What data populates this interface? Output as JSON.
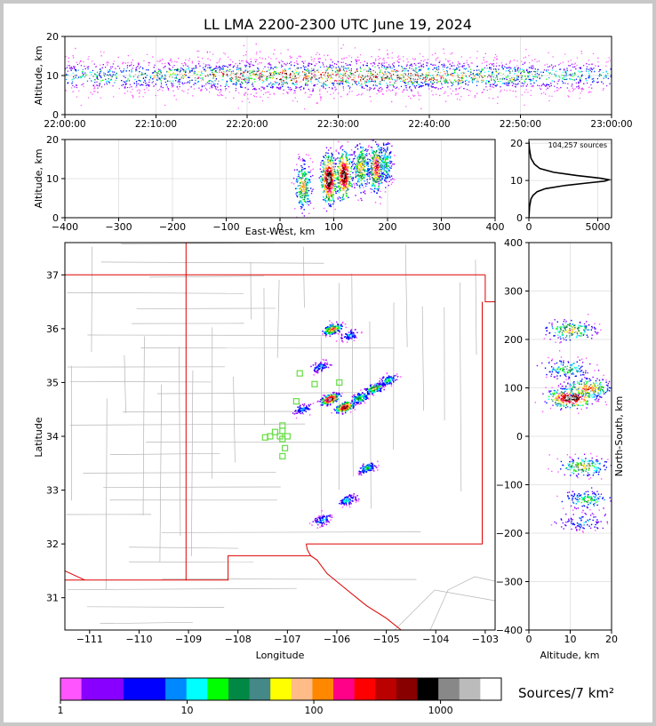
{
  "chart_data": [
    {
      "type": "scatter",
      "panel": "time-altitude",
      "title": "LL LMA 2200-2300 UTC June 19, 2024",
      "xlabel": "",
      "ylabel": "Altitude, km",
      "x_ticks": [
        "22:00:00",
        "22:10:00",
        "22:20:00",
        "22:30:00",
        "22:40:00",
        "22:50:00",
        "23:00:00"
      ],
      "x_range_minutes": [
        0,
        60
      ],
      "ylim": [
        0,
        20
      ],
      "y_ticks": [
        0,
        10,
        20
      ],
      "grid": true,
      "band_center_km": 10,
      "band_halfwidth_km": 4.5
    },
    {
      "type": "scatter",
      "panel": "east-west-altitude",
      "xlabel": "East-West, km",
      "ylabel": "Altitude, km",
      "xlim": [
        -400,
        400
      ],
      "x_ticks": [
        -400,
        -300,
        -200,
        -100,
        0,
        100,
        200,
        300,
        400
      ],
      "ylim": [
        0,
        20
      ],
      "y_ticks": [
        0,
        10,
        20
      ],
      "grid": true,
      "clusters": [
        {
          "x": 42,
          "y": 8,
          "density": 0.6
        },
        {
          "x": 90,
          "y": 10,
          "density": 1.0
        },
        {
          "x": 118,
          "y": 11,
          "density": 0.95
        },
        {
          "x": 150,
          "y": 13,
          "density": 0.6
        },
        {
          "x": 178,
          "y": 13,
          "density": 0.75
        },
        {
          "x": 195,
          "y": 14,
          "density": 0.4
        }
      ]
    },
    {
      "type": "line",
      "panel": "altitude-histogram",
      "annotation": "104,257 sources",
      "xlim": [
        0,
        6000
      ],
      "x_ticks": [
        0,
        5000
      ],
      "ylim": [
        0,
        21
      ],
      "y_ticks": [
        0,
        10,
        20
      ],
      "grid": true,
      "x": [
        0,
        50,
        150,
        300,
        600,
        1200,
        2500,
        4200,
        5500,
        5800,
        5200,
        3500,
        1800,
        800,
        400,
        150,
        40,
        0
      ],
      "y": [
        0,
        3,
        5,
        6,
        7,
        7.8,
        8.6,
        9.3,
        9.8,
        10.2,
        10.6,
        11.3,
        12.2,
        13.2,
        14.4,
        16,
        18.5,
        20.5
      ]
    },
    {
      "type": "scatter",
      "panel": "plan-view-map",
      "xlabel": "Longitude",
      "ylabel": "Latitude",
      "xlim": [
        -111.5,
        -102.8
      ],
      "x_ticks": [
        -111,
        -110,
        -109,
        -108,
        -107,
        -106,
        -105,
        -104,
        -103
      ],
      "ylim": [
        30.4,
        37.6
      ],
      "y_ticks": [
        31,
        32,
        33,
        34,
        35,
        36,
        37
      ],
      "clusters": [
        {
          "lon": -106.1,
          "lat": 36.0,
          "density": 0.7
        },
        {
          "lon": -105.75,
          "lat": 35.88,
          "density": 0.3
        },
        {
          "lon": -106.35,
          "lat": 35.3,
          "density": 0.3
        },
        {
          "lon": -106.15,
          "lat": 34.7,
          "density": 1.0
        },
        {
          "lon": -105.85,
          "lat": 34.55,
          "density": 0.95
        },
        {
          "lon": -105.55,
          "lat": 34.72,
          "density": 0.5
        },
        {
          "lon": -105.25,
          "lat": 34.9,
          "density": 0.6
        },
        {
          "lon": -104.98,
          "lat": 35.05,
          "density": 0.4
        },
        {
          "lon": -106.7,
          "lat": 34.52,
          "density": 0.3
        },
        {
          "lon": -105.4,
          "lat": 33.42,
          "density": 0.4
        },
        {
          "lon": -105.8,
          "lat": 32.82,
          "density": 0.35
        },
        {
          "lon": -106.3,
          "lat": 32.45,
          "density": 0.3
        }
      ],
      "stations": [
        {
          "lon": -107.25,
          "lat": 34.08
        },
        {
          "lon": -107.35,
          "lat": 34.0
        },
        {
          "lon": -107.15,
          "lat": 34.0
        },
        {
          "lon": -107.1,
          "lat": 33.95
        },
        {
          "lon": -107.0,
          "lat": 34.0
        },
        {
          "lon": -107.1,
          "lat": 34.2
        },
        {
          "lon": -107.1,
          "lat": 34.1
        },
        {
          "lon": -107.05,
          "lat": 33.78
        },
        {
          "lon": -107.1,
          "lat": 33.63
        },
        {
          "lon": -106.82,
          "lat": 34.65
        },
        {
          "lon": -106.75,
          "lat": 35.17
        },
        {
          "lon": -106.45,
          "lat": 34.97
        },
        {
          "lon": -105.95,
          "lat": 35.0
        },
        {
          "lon": -107.45,
          "lat": 33.98
        }
      ]
    },
    {
      "type": "scatter",
      "panel": "altitude-north-south",
      "xlabel": "Altitude, km",
      "ylabel": "North-South, km",
      "xlim": [
        0,
        20
      ],
      "x_ticks": [
        0,
        10,
        20
      ],
      "ylim": [
        -400,
        400
      ],
      "y_ticks": [
        -400,
        -300,
        -200,
        -100,
        0,
        100,
        200,
        300,
        400
      ],
      "grid": true,
      "clusters": [
        {
          "alt": 10,
          "ns": 220,
          "density": 0.6
        },
        {
          "alt": 9,
          "ns": 140,
          "density": 0.45
        },
        {
          "alt": 10,
          "ns": 80,
          "density": 1.0
        },
        {
          "alt": 14,
          "ns": 100,
          "density": 0.7
        },
        {
          "alt": 13,
          "ns": -62,
          "density": 0.6
        },
        {
          "alt": 14,
          "ns": -130,
          "density": 0.45
        },
        {
          "alt": 13,
          "ns": -175,
          "density": 0.3
        }
      ]
    }
  ],
  "colorbar": {
    "label": "Sources/7 km²",
    "tick_labels": [
      "1",
      "10",
      "100",
      "1000"
    ],
    "colors": [
      "#ff55ff",
      "#8800ff",
      "#8800ff",
      "#0000ff",
      "#0000ff",
      "#0088ff",
      "#00ffff",
      "#00ff00",
      "#008844",
      "#448888",
      "#ffff00",
      "#ffbb88",
      "#ff8800",
      "#ff0088",
      "#ff0000",
      "#bb0000",
      "#880000",
      "#000000",
      "#888888",
      "#bbbbbb",
      "#ffffff"
    ]
  }
}
